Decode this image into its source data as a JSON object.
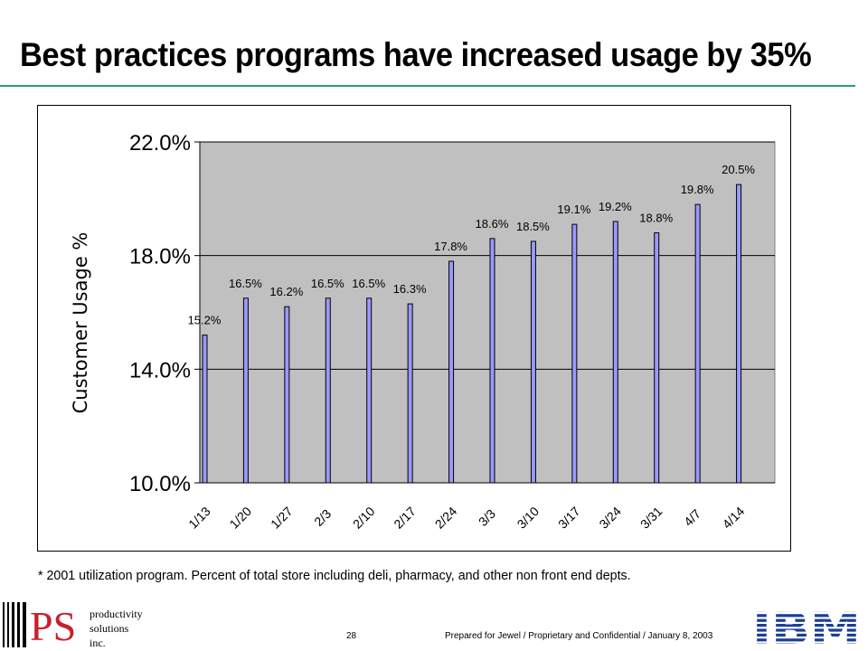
{
  "slide": {
    "title": "Best practices programs have increased usage by 35%",
    "footnote": "* 2001 utilization program.  Percent of total store including deli, pharmacy, and other non front end depts.",
    "page_number": "28",
    "footer": "Prepared for Jewel / Proprietary and Confidential / January 8, 2003",
    "rule_color": "#2e9a7c"
  },
  "logos": {
    "left": "productivity solutions inc.",
    "left_mark": "PS",
    "left_color": "#c8202a",
    "right": "IBM",
    "right_color": "#1c3f94"
  },
  "chart_data": {
    "type": "bar",
    "title": "",
    "xlabel": "",
    "ylabel": "Customer Usage %",
    "ylim": [
      10.0,
      22.0
    ],
    "yticks": [
      "10.0%",
      "14.0%",
      "18.0%",
      "22.0%"
    ],
    "ytick_values": [
      10,
      14,
      18,
      22
    ],
    "grid": true,
    "legend": "none",
    "plot_bg": "#c0c0c0",
    "bar_color": "#9999ff",
    "categories": [
      "1/13",
      "1/20",
      "1/27",
      "2/3",
      "2/10",
      "2/17",
      "2/24",
      "3/3",
      "3/10",
      "3/17",
      "3/24",
      "3/31",
      "4/7",
      "4/14"
    ],
    "values": [
      15.2,
      16.5,
      16.2,
      16.5,
      16.5,
      16.3,
      17.8,
      18.6,
      18.5,
      19.1,
      19.2,
      18.8,
      19.8,
      20.5
    ],
    "data_labels": [
      "15.2%",
      "16.5%",
      "16.2%",
      "16.5%",
      "16.5%",
      "16.3%",
      "17.8%",
      "18.6%",
      "18.5%",
      "19.1%",
      "19.2%",
      "18.8%",
      "19.8%",
      "20.5%"
    ]
  }
}
